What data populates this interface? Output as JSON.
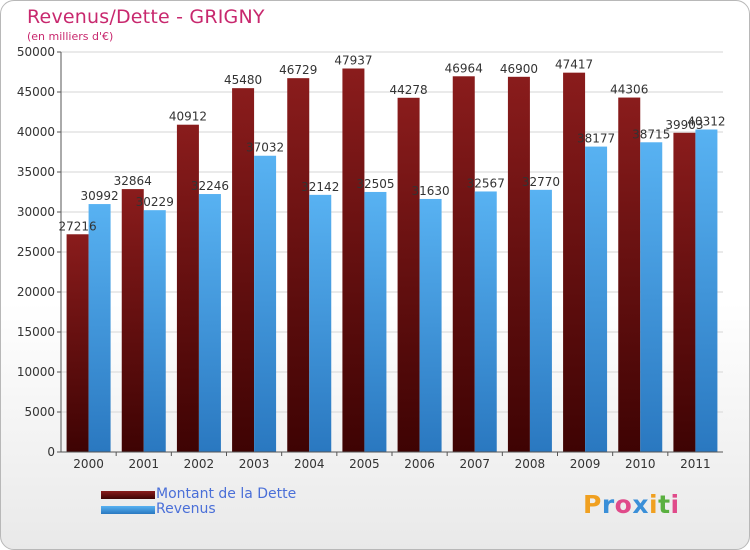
{
  "header": {
    "title": "Revenus/Dette - GRIGNY",
    "subtitle": "(en milliers d'€)"
  },
  "legend": {
    "items": [
      {
        "label": "Montant de la Dette",
        "color": "#7a1010"
      },
      {
        "label": "Revenus",
        "color": "#4aa3e8"
      }
    ]
  },
  "logo": {
    "text": "Proxiti",
    "letters": [
      {
        "ch": "P",
        "color": "#f0a020"
      },
      {
        "ch": "r",
        "color": "#3a8fd8"
      },
      {
        "ch": "o",
        "color": "#e04a8a"
      },
      {
        "ch": "x",
        "color": "#3a8fd8"
      },
      {
        "ch": "i",
        "color": "#f0a020"
      },
      {
        "ch": "t",
        "color": "#5ab040"
      },
      {
        "ch": "i",
        "color": "#e04a8a"
      }
    ]
  },
  "chart_data": {
    "type": "bar",
    "title": "Revenus/Dette - GRIGNY",
    "subtitle": "(en milliers d'€)",
    "categories": [
      "2000",
      "2001",
      "2002",
      "2003",
      "2004",
      "2005",
      "2006",
      "2007",
      "2008",
      "2009",
      "2010",
      "2011"
    ],
    "series": [
      {
        "name": "Montant de la Dette",
        "color": "#7a1010",
        "values": [
          27216,
          32864,
          40912,
          45480,
          46729,
          47937,
          44278,
          46964,
          46900,
          47417,
          44306,
          39903
        ]
      },
      {
        "name": "Revenus",
        "color": "#4aa3e8",
        "values": [
          30992,
          30229,
          32246,
          37032,
          32142,
          32505,
          31630,
          32567,
          32770,
          38177,
          38715,
          40312
        ]
      }
    ],
    "yticks": [
      0,
      5000,
      10000,
      15000,
      20000,
      25000,
      30000,
      35000,
      40000,
      45000,
      50000
    ],
    "ylim": [
      0,
      50000
    ],
    "grid": true,
    "legend_position": "bottom-left"
  }
}
